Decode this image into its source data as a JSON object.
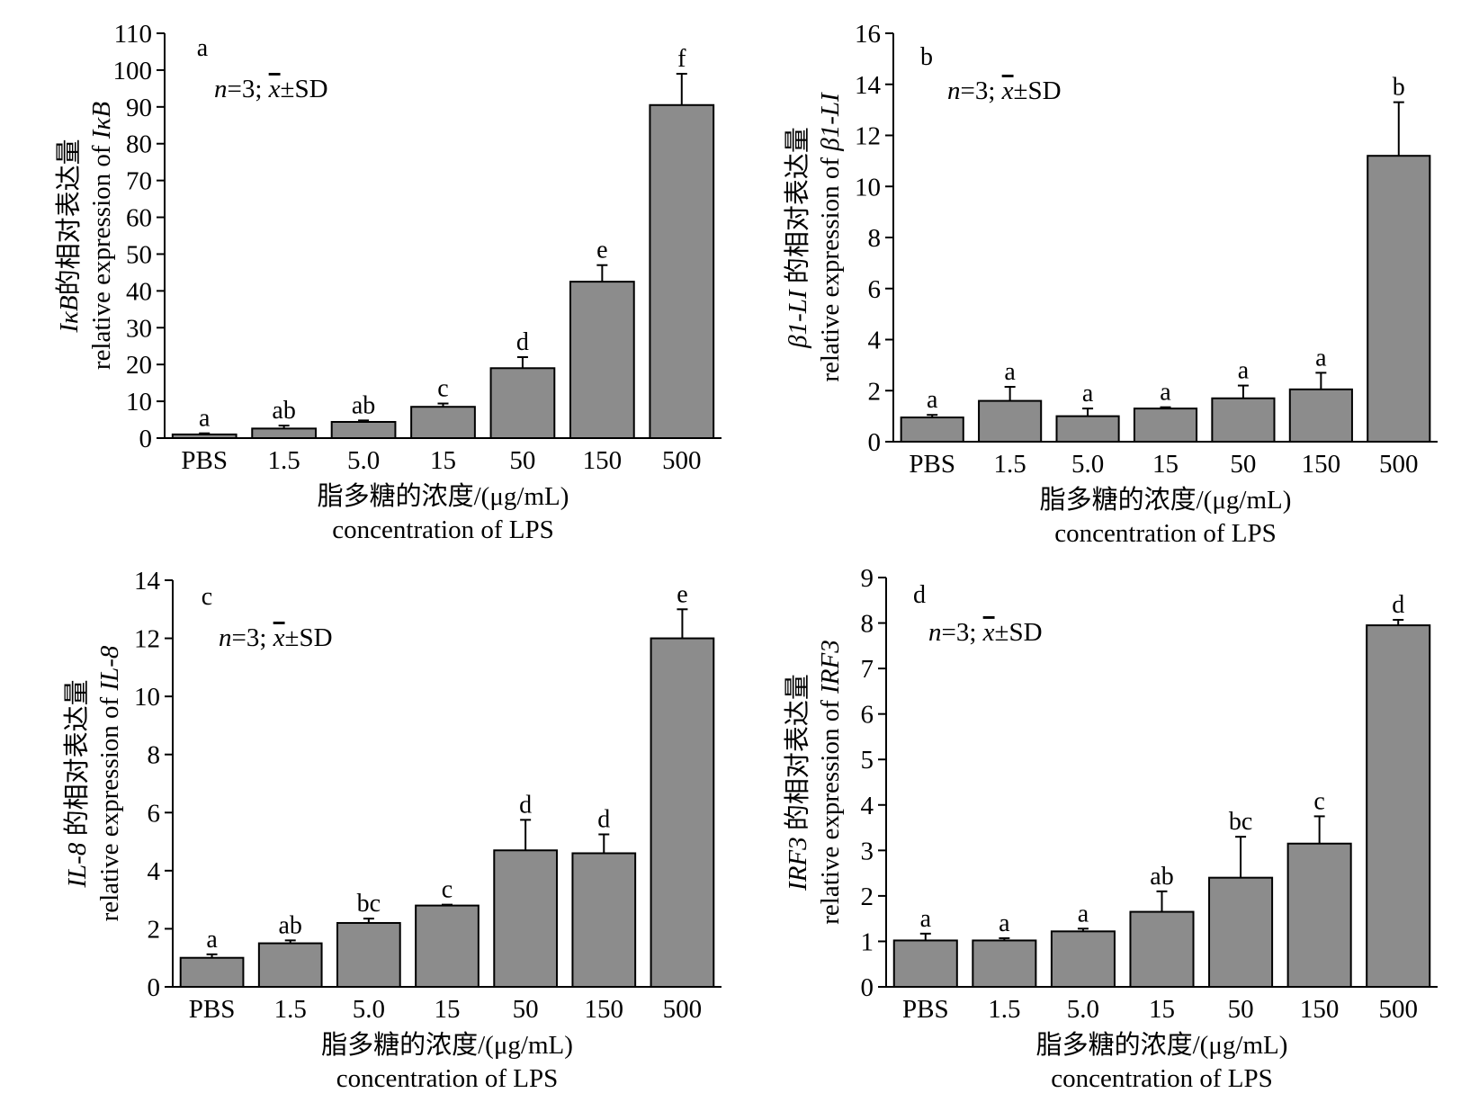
{
  "panels": [
    {
      "id": "a",
      "panel_label": "a",
      "stat_note": {
        "n": "n",
        "eq": "=3; ",
        "x": "x",
        "rest": "±SD"
      },
      "ylabel_line1": [
        {
          "t": "IκB",
          "i": true
        },
        {
          "t": "的相对表达量",
          "i": false
        }
      ],
      "ylabel_line2": [
        {
          "t": "relative expression of ",
          "i": false
        },
        {
          "t": "IκB",
          "i": true
        }
      ],
      "xlabel_line1": "脂多糖的浓度/(μg/mL)",
      "xlabel_line2": "concentration of LPS"
    },
    {
      "id": "b",
      "panel_label": "b",
      "stat_note": {
        "n": "n",
        "eq": "=3; ",
        "x": "x",
        "rest": "±SD"
      },
      "ylabel_line1": [
        {
          "t": "β1-LI",
          "i": true
        },
        {
          "t": " 的相对表达量",
          "i": false
        }
      ],
      "ylabel_line2": [
        {
          "t": "relative expression of ",
          "i": false
        },
        {
          "t": "β1-LI",
          "i": true
        }
      ],
      "xlabel_line1": "脂多糖的浓度/(μg/mL)",
      "xlabel_line2": "concentration of LPS"
    },
    {
      "id": "c",
      "panel_label": "c",
      "stat_note": {
        "n": "n",
        "eq": "=3; ",
        "x": "x",
        "rest": "±SD"
      },
      "ylabel_line1": [
        {
          "t": "IL-8",
          "i": true
        },
        {
          "t": " 的相对表达量",
          "i": false
        }
      ],
      "ylabel_line2": [
        {
          "t": "relative expression of ",
          "i": false
        },
        {
          "t": "IL-8",
          "i": true
        }
      ],
      "xlabel_line1": "脂多糖的浓度/(μg/mL)",
      "xlabel_line2": "concentration of LPS"
    },
    {
      "id": "d",
      "panel_label": "d",
      "stat_note": {
        "n": "n",
        "eq": "=3; ",
        "x": "x",
        "rest": "±SD"
      },
      "ylabel_line1": [
        {
          "t": "IRF3",
          "i": true
        },
        {
          "t": " 的相对表达量",
          "i": false
        }
      ],
      "ylabel_line2": [
        {
          "t": "relative expression of ",
          "i": false
        },
        {
          "t": "IRF3",
          "i": true
        }
      ],
      "xlabel_line1": "脂多糖的浓度/(μg/mL)",
      "xlabel_line2": "concentration of LPS"
    }
  ],
  "chart_data": [
    {
      "type": "bar",
      "panel": "a",
      "categories": [
        "PBS",
        "1.5",
        "5.0",
        "15",
        "50",
        "150",
        "500"
      ],
      "values": [
        1,
        2.6,
        4.4,
        8.5,
        19,
        42.5,
        90.5
      ],
      "errors": [
        0.3,
        0.8,
        0.4,
        0.9,
        3.0,
        4.5,
        8.5
      ],
      "letters": [
        "a",
        "ab",
        "ab",
        "c",
        "d",
        "e",
        "f"
      ],
      "ylim": [
        0,
        110
      ],
      "yticks": [
        0,
        10,
        20,
        30,
        40,
        50,
        60,
        70,
        80,
        90,
        100,
        110
      ],
      "bar_color": "#8c8c8c"
    },
    {
      "type": "bar",
      "panel": "b",
      "categories": [
        "PBS",
        "1.5",
        "5.0",
        "15",
        "50",
        "150",
        "500"
      ],
      "values": [
        0.95,
        1.6,
        1.0,
        1.3,
        1.7,
        2.05,
        11.2
      ],
      "errors": [
        0.1,
        0.55,
        0.3,
        0.05,
        0.5,
        0.65,
        2.1
      ],
      "letters": [
        "a",
        "a",
        "a",
        "a",
        "a",
        "a",
        "b"
      ],
      "ylim": [
        0,
        16
      ],
      "yticks": [
        0,
        2,
        4,
        6,
        8,
        10,
        12,
        14,
        16
      ],
      "bar_color": "#8c8c8c"
    },
    {
      "type": "bar",
      "panel": "c",
      "categories": [
        "PBS",
        "1.5",
        "5.0",
        "15",
        "50",
        "150",
        "500"
      ],
      "values": [
        1.0,
        1.5,
        2.2,
        2.8,
        4.7,
        4.6,
        12.0
      ],
      "errors": [
        0.12,
        0.1,
        0.15,
        0.03,
        1.05,
        0.65,
        1.0
      ],
      "letters": [
        "a",
        "ab",
        "bc",
        "c",
        "d",
        "d",
        "e"
      ],
      "ylim": [
        0,
        14
      ],
      "yticks": [
        0,
        2,
        4,
        6,
        8,
        10,
        12,
        14
      ],
      "bar_color": "#8c8c8c"
    },
    {
      "type": "bar",
      "panel": "d",
      "categories": [
        "PBS",
        "1.5",
        "5.0",
        "15",
        "50",
        "150",
        "500"
      ],
      "values": [
        1.02,
        1.02,
        1.22,
        1.65,
        2.4,
        3.15,
        7.95
      ],
      "errors": [
        0.15,
        0.05,
        0.06,
        0.45,
        0.9,
        0.6,
        0.12
      ],
      "letters": [
        "a",
        "a",
        "a",
        "ab",
        "bc",
        "c",
        "d"
      ],
      "ylim": [
        0,
        9
      ],
      "yticks": [
        0,
        1,
        2,
        3,
        4,
        5,
        6,
        7,
        8,
        9
      ],
      "bar_color": "#8c8c8c"
    }
  ]
}
